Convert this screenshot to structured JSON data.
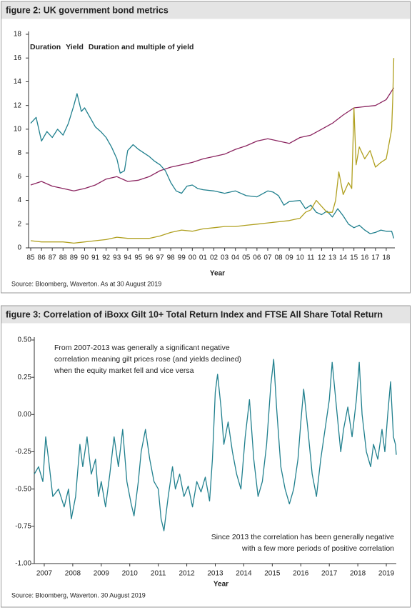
{
  "chart_data": [
    {
      "type": "line",
      "title": "figure 2: UK government bond metrics",
      "x_label": "Year",
      "source": "Source: Bloomberg, Waverton. As at 30 August 2019",
      "legend": true,
      "xlim": [
        1984.8,
        2018.8
      ],
      "ylim": [
        0,
        18
      ],
      "yticks": [
        0,
        2,
        4,
        6,
        8,
        10,
        12,
        14,
        16,
        18
      ],
      "xticks": [
        {
          "value": 1985,
          "label": "85"
        },
        {
          "value": 1986,
          "label": "86"
        },
        {
          "value": 1987,
          "label": "87"
        },
        {
          "value": 1988,
          "label": "88"
        },
        {
          "value": 1989,
          "label": "89"
        },
        {
          "value": 1990,
          "label": "90"
        },
        {
          "value": 1991,
          "label": "91"
        },
        {
          "value": 1992,
          "label": "92"
        },
        {
          "value": 1993,
          "label": "93"
        },
        {
          "value": 1994,
          "label": "94"
        },
        {
          "value": 1995,
          "label": "95"
        },
        {
          "value": 1996,
          "label": "96"
        },
        {
          "value": 1997,
          "label": "97"
        },
        {
          "value": 1998,
          "label": "98"
        },
        {
          "value": 1999,
          "label": "99"
        },
        {
          "value": 2000,
          "label": "00"
        },
        {
          "value": 2001,
          "label": "01"
        },
        {
          "value": 2002,
          "label": "02"
        },
        {
          "value": 2003,
          "label": "03"
        },
        {
          "value": 2004,
          "label": "04"
        },
        {
          "value": 2005,
          "label": "05"
        },
        {
          "value": 2006,
          "label": "06"
        },
        {
          "value": 2007,
          "label": "07"
        },
        {
          "value": 2008,
          "label": "08"
        },
        {
          "value": 2009,
          "label": "09"
        },
        {
          "value": 2010,
          "label": "10"
        },
        {
          "value": 2011,
          "label": "11"
        },
        {
          "value": 2012,
          "label": "12"
        },
        {
          "value": 2013,
          "label": "13"
        },
        {
          "value": 2014,
          "label": "14"
        },
        {
          "value": 2015,
          "label": "15"
        },
        {
          "value": 2016,
          "label": "16"
        },
        {
          "value": 2017,
          "label": "17"
        },
        {
          "value": 2018,
          "label": "18"
        }
      ],
      "series": [
        {
          "name": "Duration",
          "color": "#8b2560",
          "x": [
            1985,
            1986,
            1987,
            1988,
            1989,
            1990,
            1991,
            1992,
            1993,
            1994,
            1995,
            1996,
            1997,
            1998,
            1999,
            2000,
            2001,
            2002,
            2003,
            2004,
            2005,
            2006,
            2007,
            2008,
            2009,
            2010,
            2011,
            2012,
            2013,
            2014,
            2015,
            2016,
            2017,
            2018,
            2018.7
          ],
          "values": [
            5.3,
            5.6,
            5.2,
            5.0,
            4.8,
            5.0,
            5.3,
            5.8,
            6.0,
            5.6,
            5.7,
            6.0,
            6.5,
            6.8,
            7.0,
            7.2,
            7.5,
            7.7,
            7.9,
            8.3,
            8.6,
            9.0,
            9.2,
            9.0,
            8.8,
            9.3,
            9.5,
            10.0,
            10.5,
            11.2,
            11.8,
            11.9,
            12.0,
            12.5,
            13.5
          ]
        },
        {
          "name": "Yield",
          "color": "#21808e",
          "x": [
            1985,
            1985.5,
            1986,
            1986.5,
            1987,
            1987.5,
            1988,
            1988.5,
            1989,
            1989.3,
            1989.7,
            1990,
            1990.5,
            1991,
            1991.5,
            1992,
            1992.5,
            1993,
            1993.3,
            1993.7,
            1994,
            1994.5,
            1995,
            1995.5,
            1996,
            1996.5,
            1997,
            1997.5,
            1998,
            1998.5,
            1999,
            1999.5,
            2000,
            2000.5,
            2001,
            2002,
            2003,
            2004,
            2005,
            2006,
            2007,
            2007.5,
            2008,
            2008.5,
            2009,
            2010,
            2010.5,
            2011,
            2011.5,
            2012,
            2012.5,
            2013,
            2013.5,
            2014,
            2014.5,
            2015,
            2015.5,
            2016,
            2016.5,
            2017,
            2017.5,
            2018,
            2018.5,
            2018.7
          ],
          "values": [
            10.5,
            11.0,
            9.0,
            9.8,
            9.3,
            10.0,
            9.5,
            10.5,
            12.0,
            13.0,
            11.5,
            11.8,
            11.0,
            10.2,
            9.8,
            9.3,
            8.5,
            7.5,
            6.3,
            6.5,
            8.2,
            8.7,
            8.3,
            8.0,
            7.7,
            7.3,
            7.0,
            6.5,
            5.5,
            4.8,
            4.6,
            5.2,
            5.3,
            5.0,
            4.9,
            4.8,
            4.6,
            4.8,
            4.4,
            4.3,
            4.8,
            4.7,
            4.4,
            3.6,
            3.9,
            4.0,
            3.3,
            3.6,
            3.0,
            2.8,
            3.1,
            2.6,
            3.3,
            2.7,
            2.0,
            1.7,
            1.9,
            1.5,
            1.2,
            1.3,
            1.5,
            1.4,
            1.4,
            0.8
          ]
        },
        {
          "name": "Duration and multiple of yield",
          "color": "#b0a020",
          "x": [
            1985,
            1986,
            1987,
            1988,
            1989,
            1990,
            1991,
            1992,
            1993,
            1994,
            1995,
            1996,
            1997,
            1998,
            1999,
            2000,
            2001,
            2002,
            2003,
            2004,
            2005,
            2006,
            2007,
            2008,
            2009,
            2010,
            2010.5,
            2011,
            2011.5,
            2012,
            2012.5,
            2013,
            2013.3,
            2013.6,
            2014,
            2014.5,
            2014.8,
            2015,
            2015.2,
            2015.5,
            2016,
            2016.5,
            2017,
            2017.5,
            2018,
            2018.3,
            2018.5,
            2018.6,
            2018.7
          ],
          "values": [
            0.6,
            0.5,
            0.5,
            0.5,
            0.4,
            0.5,
            0.6,
            0.7,
            0.9,
            0.8,
            0.8,
            0.8,
            1.0,
            1.3,
            1.5,
            1.4,
            1.6,
            1.7,
            1.8,
            1.8,
            1.9,
            2.0,
            2.1,
            2.2,
            2.3,
            2.5,
            3.0,
            3.2,
            4.0,
            3.5,
            3.0,
            3.0,
            4.0,
            6.4,
            4.5,
            5.5,
            5.0,
            11.8,
            7.0,
            8.5,
            7.5,
            8.2,
            6.8,
            7.2,
            7.5,
            9.0,
            10.0,
            12.5,
            16.0
          ]
        }
      ]
    },
    {
      "type": "line",
      "title": "figure 3: Correlation of iBoxx Gilt 10+ Total Return Index and FTSE All Share Total Return",
      "x_label": "Year",
      "source": "Source: Bloomberg, Waverton. 30 August 2019",
      "xlim": [
        2006.65,
        2019.35
      ],
      "ylim": [
        -1,
        0.5
      ],
      "yticks": [
        {
          "value": 0.5,
          "label": "0.50"
        },
        {
          "value": 0.25,
          "label": "0.25"
        },
        {
          "value": 0,
          "label": "0.00"
        },
        {
          "value": -0.25,
          "label": "-0.25"
        },
        {
          "value": -0.5,
          "label": "-0.50"
        },
        {
          "value": -0.75,
          "label": "-0.75"
        },
        {
          "value": -1,
          "label": "-1.00"
        }
      ],
      "xticks": [
        2007,
        2008,
        2009,
        2010,
        2011,
        2012,
        2013,
        2014,
        2015,
        2016,
        2017,
        2018,
        2019
      ],
      "annotations": [
        [
          "From 2007-2013 was generally a significant negative",
          "correlation meaning gilt prices rose (and yields declined)",
          "when the equity market fell and vice versa"
        ],
        [
          "Since 2013 the correlation has been generally negative",
          "with a few more periods of positive correlation"
        ]
      ],
      "series": [
        {
          "color": "#21808e",
          "x": [
            2006.65,
            2006.8,
            2006.95,
            2007.05,
            2007.15,
            2007.3,
            2007.5,
            2007.7,
            2007.85,
            2007.95,
            2008.1,
            2008.25,
            2008.35,
            2008.5,
            2008.65,
            2008.8,
            2008.9,
            2009.0,
            2009.15,
            2009.3,
            2009.45,
            2009.6,
            2009.75,
            2009.9,
            2010.05,
            2010.15,
            2010.3,
            2010.4,
            2010.55,
            2010.7,
            2010.85,
            2011.0,
            2011.1,
            2011.2,
            2011.35,
            2011.5,
            2011.6,
            2011.75,
            2011.9,
            2012.05,
            2012.2,
            2012.35,
            2012.5,
            2012.65,
            2012.8,
            2012.9,
            2013.0,
            2013.08,
            2013.2,
            2013.3,
            2013.45,
            2013.6,
            2013.75,
            2013.9,
            2014.05,
            2014.2,
            2014.35,
            2014.5,
            2014.65,
            2014.8,
            2014.95,
            2015.05,
            2015.15,
            2015.3,
            2015.45,
            2015.6,
            2015.75,
            2015.9,
            2016.0,
            2016.1,
            2016.25,
            2016.4,
            2016.55,
            2016.7,
            2016.85,
            2017.0,
            2017.1,
            2017.25,
            2017.4,
            2017.5,
            2017.65,
            2017.8,
            2017.95,
            2018.05,
            2018.15,
            2018.3,
            2018.45,
            2018.55,
            2018.7,
            2018.85,
            2018.95,
            2019.05,
            2019.15,
            2019.25,
            2019.32,
            2019.35
          ],
          "values": [
            -0.4,
            -0.35,
            -0.45,
            -0.15,
            -0.3,
            -0.55,
            -0.5,
            -0.62,
            -0.5,
            -0.7,
            -0.55,
            -0.2,
            -0.35,
            -0.15,
            -0.4,
            -0.3,
            -0.55,
            -0.45,
            -0.62,
            -0.4,
            -0.15,
            -0.35,
            -0.1,
            -0.45,
            -0.6,
            -0.68,
            -0.45,
            -0.25,
            -0.1,
            -0.3,
            -0.45,
            -0.5,
            -0.7,
            -0.78,
            -0.55,
            -0.35,
            -0.5,
            -0.4,
            -0.55,
            -0.48,
            -0.62,
            -0.45,
            -0.52,
            -0.42,
            -0.58,
            -0.3,
            0.15,
            0.27,
            0.05,
            -0.2,
            -0.05,
            -0.25,
            -0.4,
            -0.5,
            -0.15,
            0.1,
            -0.3,
            -0.55,
            -0.45,
            -0.2,
            0.2,
            0.37,
            0.05,
            -0.35,
            -0.5,
            -0.6,
            -0.5,
            -0.3,
            -0.05,
            0.17,
            -0.1,
            -0.4,
            -0.55,
            -0.3,
            -0.1,
            0.1,
            0.35,
            0.05,
            -0.25,
            -0.1,
            0.05,
            -0.15,
            0.1,
            0.35,
            0.0,
            -0.25,
            -0.35,
            -0.2,
            -0.3,
            -0.1,
            -0.25,
            0.0,
            0.22,
            -0.15,
            -0.2,
            -0.27
          ]
        }
      ]
    }
  ]
}
